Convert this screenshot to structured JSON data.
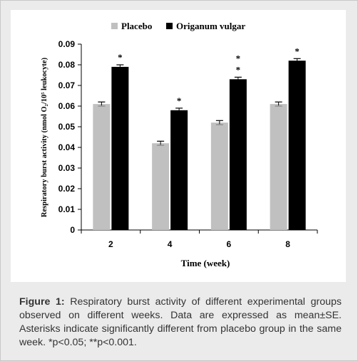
{
  "chart_data": {
    "type": "bar",
    "categories": [
      "2",
      "4",
      "6",
      "8"
    ],
    "series": [
      {
        "name": "Placebo",
        "values": [
          0.061,
          0.042,
          0.052,
          0.061
        ],
        "errors": [
          0.001,
          0.001,
          0.001,
          0.001
        ],
        "color": "#c0c0c0",
        "stars": [
          "",
          "",
          "",
          ""
        ]
      },
      {
        "name": "Origanum vulgar",
        "values": [
          0.079,
          0.058,
          0.073,
          0.082
        ],
        "errors": [
          0.001,
          0.001,
          0.001,
          0.001
        ],
        "color": "#000000",
        "stars": [
          "*",
          "*",
          "**",
          "*"
        ]
      }
    ],
    "xlabel": "Time (week)",
    "ylabel": "Respiratory burst activity (nmol O₂/10⁵ leukocyte)",
    "ylim": [
      0,
      0.09
    ],
    "yticks": [
      "0",
      "0.01",
      "0.02",
      "0.03",
      "0.04",
      "0.05",
      "0.06",
      "0.07",
      "0.08",
      "0.09"
    ],
    "legend_position": "top",
    "grid": false
  },
  "caption": {
    "label": "Figure 1:",
    "text": "Respiratory burst activity of different experimental groups observed on different weeks. Data are expressed as mean±SE. Asterisks indicate significantly different from placebo group in the same week. *p<0.05;  **p<0.001."
  }
}
